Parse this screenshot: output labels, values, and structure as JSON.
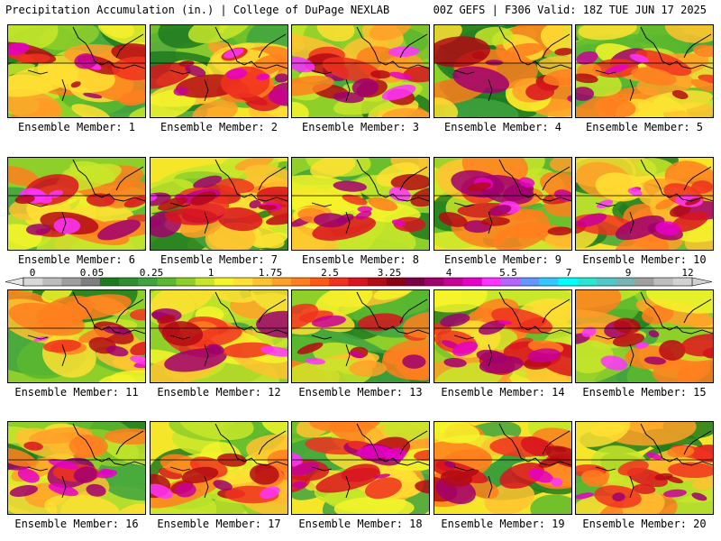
{
  "header": {
    "left": "Precipitation Accumulation (in.) | College of DuPage NEXLAB",
    "right": "00Z GEFS | F306 Valid: 18Z TUE JUN 17 2025"
  },
  "panels": [
    {
      "label": "Ensemble Member: 1",
      "wet": 0.42
    },
    {
      "label": "Ensemble Member: 2",
      "wet": 0.7
    },
    {
      "label": "Ensemble Member: 3",
      "wet": 0.58
    },
    {
      "label": "Ensemble Member: 4",
      "wet": 0.35
    },
    {
      "label": "Ensemble Member: 5",
      "wet": 0.5
    },
    {
      "label": "Ensemble Member: 6",
      "wet": 0.55
    },
    {
      "label": "Ensemble Member: 7",
      "wet": 0.78
    },
    {
      "label": "Ensemble Member: 8",
      "wet": 0.55
    },
    {
      "label": "Ensemble Member: 9",
      "wet": 0.68
    },
    {
      "label": "Ensemble Member: 10",
      "wet": 0.62
    },
    {
      "label": "Ensemble Member: 11",
      "wet": 0.42
    },
    {
      "label": "Ensemble Member: 12",
      "wet": 0.52
    },
    {
      "label": "Ensemble Member: 13",
      "wet": 0.4
    },
    {
      "label": "Ensemble Member: 14",
      "wet": 0.72
    },
    {
      "label": "Ensemble Member: 15",
      "wet": 0.45
    },
    {
      "label": "Ensemble Member: 16",
      "wet": 0.5
    },
    {
      "label": "Ensemble Member: 17",
      "wet": 0.66
    },
    {
      "label": "Ensemble Member: 18",
      "wet": 0.72
    },
    {
      "label": "Ensemble Member: 19",
      "wet": 0.66
    },
    {
      "label": "Ensemble Member: 20",
      "wet": 0.66
    }
  ],
  "colorbar": {
    "tick_labels": [
      "0",
      "0.05",
      "0.25",
      "1",
      "1.75",
      "2.5",
      "3.25",
      "4",
      "5.5",
      "7",
      "9",
      "12"
    ],
    "tick_values": [
      0,
      0.05,
      0.25,
      1,
      1.75,
      2.5,
      3.25,
      4,
      5.5,
      7,
      9,
      12
    ],
    "colors": [
      "#d8d8d8",
      "#bdbdbd",
      "#9e9e9e",
      "#7f7f7f",
      "#1f7a1f",
      "#2f8f2f",
      "#3fa33f",
      "#5cb82e",
      "#8fcf2a",
      "#c8e62a",
      "#f5f52a",
      "#ffe033",
      "#ffc230",
      "#ffa028",
      "#ff7f1e",
      "#ff5a14",
      "#f0321e",
      "#d8141e",
      "#b40a14",
      "#8c0014",
      "#7a0046",
      "#a0006e",
      "#c80096",
      "#e600c8",
      "#ff32ff",
      "#b464ff",
      "#6496ff",
      "#32c8ff",
      "#00ffff",
      "#28e6d2",
      "#50c8c8",
      "#78b4b4",
      "#a0a0a0",
      "#bebebe",
      "#d2d2d2"
    ]
  },
  "chart_data": {
    "type": "heatmap",
    "title": "Precipitation Accumulation (in.)",
    "subtitle": "00Z GEFS | F306 Valid: 18Z TUE JUN 17 2025",
    "panels": [
      "Ensemble Member: 1",
      "Ensemble Member: 2",
      "Ensemble Member: 3",
      "Ensemble Member: 4",
      "Ensemble Member: 5",
      "Ensemble Member: 6",
      "Ensemble Member: 7",
      "Ensemble Member: 8",
      "Ensemble Member: 9",
      "Ensemble Member: 10",
      "Ensemble Member: 11",
      "Ensemble Member: 12",
      "Ensemble Member: 13",
      "Ensemble Member: 14",
      "Ensemble Member: 15",
      "Ensemble Member: 16",
      "Ensemble Member: 17",
      "Ensemble Member: 18",
      "Ensemble Member: 19",
      "Ensemble Member: 20"
    ],
    "scale_levels": [
      0,
      0.05,
      0.25,
      1,
      1.75,
      2.5,
      3.25,
      4,
      5.5,
      7,
      9,
      12
    ],
    "units": "in."
  }
}
